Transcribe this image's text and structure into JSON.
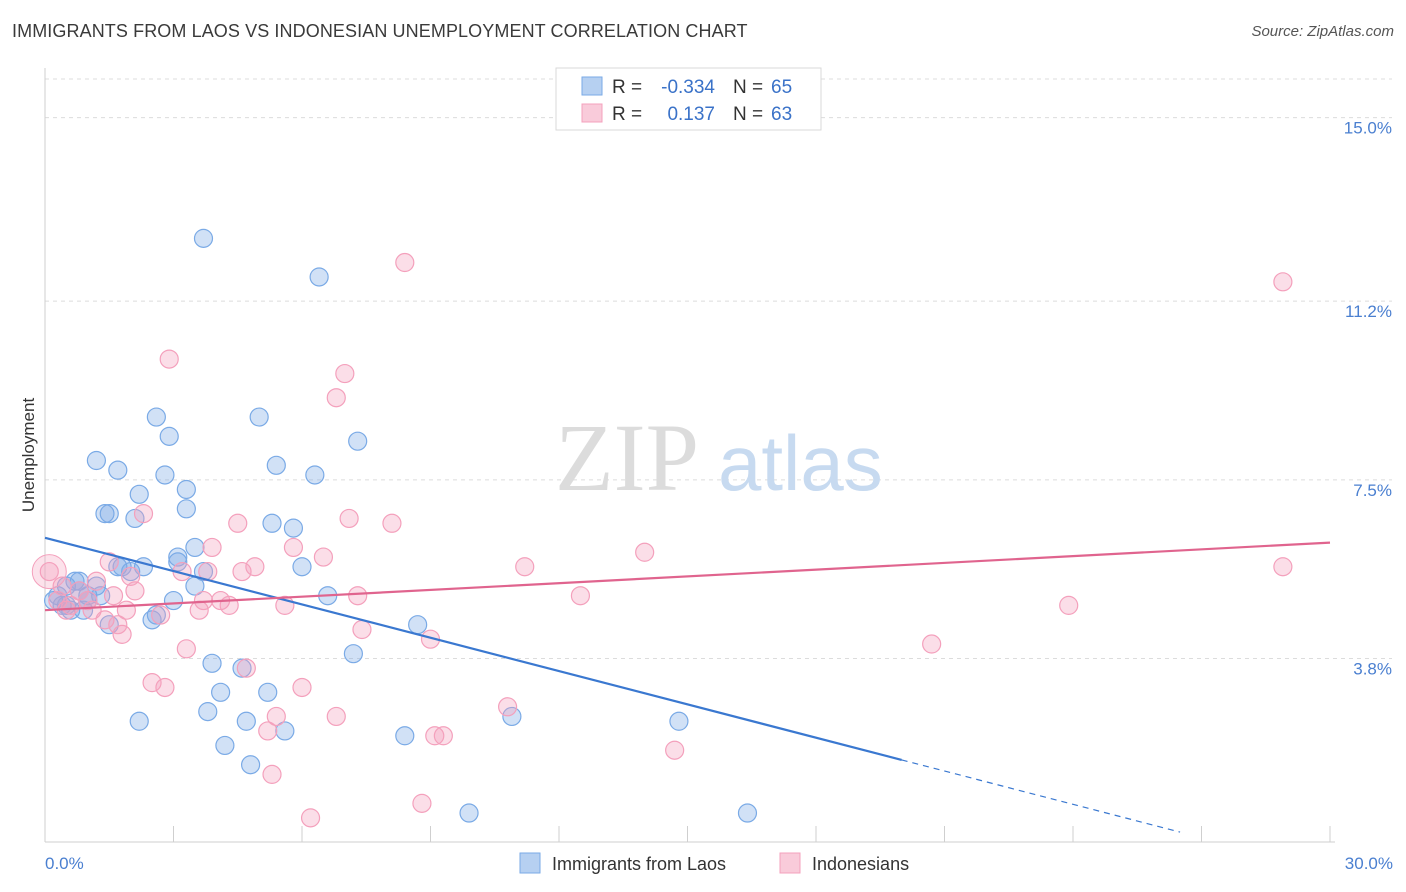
{
  "title": "IMMIGRANTS FROM LAOS VS INDONESIAN UNEMPLOYMENT CORRELATION CHART",
  "source": "Source: ZipAtlas.com",
  "watermark": {
    "zip": "ZIP",
    "atlas": "atlas"
  },
  "chart_data": {
    "type": "scatter",
    "xlabel": "",
    "ylabel": "Unemployment",
    "xlim": [
      0,
      30
    ],
    "ylim": [
      0,
      15.8
    ],
    "x_tick_labels": [
      "0.0%",
      "30.0%"
    ],
    "y_ticks": [
      {
        "value": 15.0,
        "label": "15.0%"
      },
      {
        "value": 11.2,
        "label": "11.2%"
      },
      {
        "value": 7.5,
        "label": "7.5%"
      },
      {
        "value": 3.8,
        "label": "3.8%"
      }
    ],
    "legend_placement": "top-center",
    "series": [
      {
        "name": "Immigrants from Laos",
        "color": "#7aaae6",
        "line_color": "#3a78d0",
        "r_label": "R =",
        "r_value": "-0.334",
        "n_label": "N =",
        "n_value": "65",
        "trend": {
          "x0": 0,
          "y0": 6.3,
          "x1": 20.0,
          "y1": 1.7,
          "dash_to_x": 26.5
        },
        "points": [
          [
            0.2,
            5.0
          ],
          [
            0.4,
            4.9
          ],
          [
            0.5,
            5.3
          ],
          [
            0.6,
            4.8
          ],
          [
            0.7,
            5.4
          ],
          [
            0.8,
            5.2
          ],
          [
            0.9,
            4.8
          ],
          [
            1.0,
            5.1
          ],
          [
            1.2,
            5.3
          ],
          [
            1.3,
            5.1
          ],
          [
            1.5,
            4.5
          ],
          [
            1.7,
            5.7
          ],
          [
            1.8,
            5.7
          ],
          [
            1.2,
            7.9
          ],
          [
            1.7,
            7.7
          ],
          [
            1.4,
            6.8
          ],
          [
            1.5,
            6.8
          ],
          [
            2.1,
            6.7
          ],
          [
            2.2,
            7.2
          ],
          [
            2.3,
            5.7
          ],
          [
            2.5,
            4.6
          ],
          [
            2.6,
            4.7
          ],
          [
            2.8,
            7.6
          ],
          [
            2.9,
            8.4
          ],
          [
            2.6,
            8.8
          ],
          [
            3.1,
            5.9
          ],
          [
            3.1,
            5.8
          ],
          [
            3.3,
            6.9
          ],
          [
            3.3,
            7.3
          ],
          [
            3.5,
            6.1
          ],
          [
            3.5,
            5.3
          ],
          [
            3.0,
            5.0
          ],
          [
            3.7,
            5.6
          ],
          [
            3.8,
            2.7
          ],
          [
            3.9,
            3.7
          ],
          [
            4.1,
            3.1
          ],
          [
            4.2,
            2.0
          ],
          [
            4.6,
            3.6
          ],
          [
            4.7,
            2.5
          ],
          [
            4.8,
            1.6
          ],
          [
            5.0,
            8.8
          ],
          [
            5.2,
            3.1
          ],
          [
            5.3,
            6.6
          ],
          [
            5.4,
            7.8
          ],
          [
            5.6,
            2.3
          ],
          [
            5.8,
            6.5
          ],
          [
            6.0,
            5.7
          ],
          [
            6.3,
            7.6
          ],
          [
            6.4,
            11.7
          ],
          [
            6.6,
            5.1
          ],
          [
            7.2,
            3.9
          ],
          [
            7.3,
            8.3
          ],
          [
            3.7,
            12.5
          ],
          [
            8.4,
            2.2
          ],
          [
            8.7,
            4.5
          ],
          [
            9.9,
            0.6
          ],
          [
            10.9,
            2.6
          ],
          [
            14.8,
            2.5
          ],
          [
            16.4,
            0.6
          ],
          [
            2.2,
            2.5
          ],
          [
            0.3,
            5.1
          ],
          [
            0.5,
            4.9
          ],
          [
            1.0,
            5.0
          ],
          [
            0.8,
            5.4
          ],
          [
            2.0,
            5.6
          ]
        ]
      },
      {
        "name": "Indonesians",
        "color": "#f4a0bc",
        "line_color": "#e0648e",
        "r_label": "R =",
        "r_value": "0.137",
        "n_label": "N =",
        "n_value": "63",
        "trend": {
          "x0": 0,
          "y0": 4.8,
          "x1": 30,
          "y1": 6.2
        },
        "points": [
          [
            0.1,
            5.6
          ],
          [
            0.3,
            5.0
          ],
          [
            0.5,
            4.8
          ],
          [
            0.6,
            4.9
          ],
          [
            0.8,
            5.2
          ],
          [
            1.0,
            5.0
          ],
          [
            1.1,
            4.8
          ],
          [
            1.2,
            5.4
          ],
          [
            1.4,
            4.6
          ],
          [
            1.5,
            5.8
          ],
          [
            1.6,
            5.1
          ],
          [
            1.7,
            4.5
          ],
          [
            1.9,
            4.8
          ],
          [
            2.0,
            5.5
          ],
          [
            2.3,
            6.8
          ],
          [
            2.5,
            3.3
          ],
          [
            2.8,
            3.2
          ],
          [
            2.7,
            4.7
          ],
          [
            2.9,
            10.0
          ],
          [
            3.2,
            5.6
          ],
          [
            3.3,
            4.0
          ],
          [
            3.6,
            4.8
          ],
          [
            3.7,
            5.0
          ],
          [
            3.8,
            5.6
          ],
          [
            3.9,
            6.1
          ],
          [
            4.3,
            4.9
          ],
          [
            4.5,
            6.6
          ],
          [
            4.6,
            5.6
          ],
          [
            4.7,
            3.6
          ],
          [
            4.9,
            5.7
          ],
          [
            5.2,
            2.3
          ],
          [
            5.3,
            1.4
          ],
          [
            5.4,
            2.6
          ],
          [
            5.6,
            4.9
          ],
          [
            5.8,
            6.1
          ],
          [
            6.0,
            3.2
          ],
          [
            6.2,
            0.5
          ],
          [
            6.5,
            5.9
          ],
          [
            6.8,
            9.2
          ],
          [
            6.8,
            2.6
          ],
          [
            7.0,
            9.7
          ],
          [
            7.1,
            6.7
          ],
          [
            7.3,
            5.1
          ],
          [
            7.4,
            4.4
          ],
          [
            8.1,
            6.6
          ],
          [
            8.4,
            12.0
          ],
          [
            8.8,
            0.8
          ],
          [
            9.0,
            4.2
          ],
          [
            9.3,
            2.2
          ],
          [
            10.8,
            2.8
          ],
          [
            11.2,
            5.7
          ],
          [
            12.5,
            5.1
          ],
          [
            14.0,
            6.0
          ],
          [
            14.7,
            1.9
          ],
          [
            20.7,
            4.1
          ],
          [
            23.9,
            4.9
          ],
          [
            28.9,
            5.7
          ],
          [
            28.9,
            11.6
          ],
          [
            1.8,
            4.3
          ],
          [
            4.1,
            5.0
          ],
          [
            9.1,
            2.2
          ],
          [
            0.4,
            5.3
          ],
          [
            2.1,
            5.2
          ]
        ]
      }
    ]
  }
}
